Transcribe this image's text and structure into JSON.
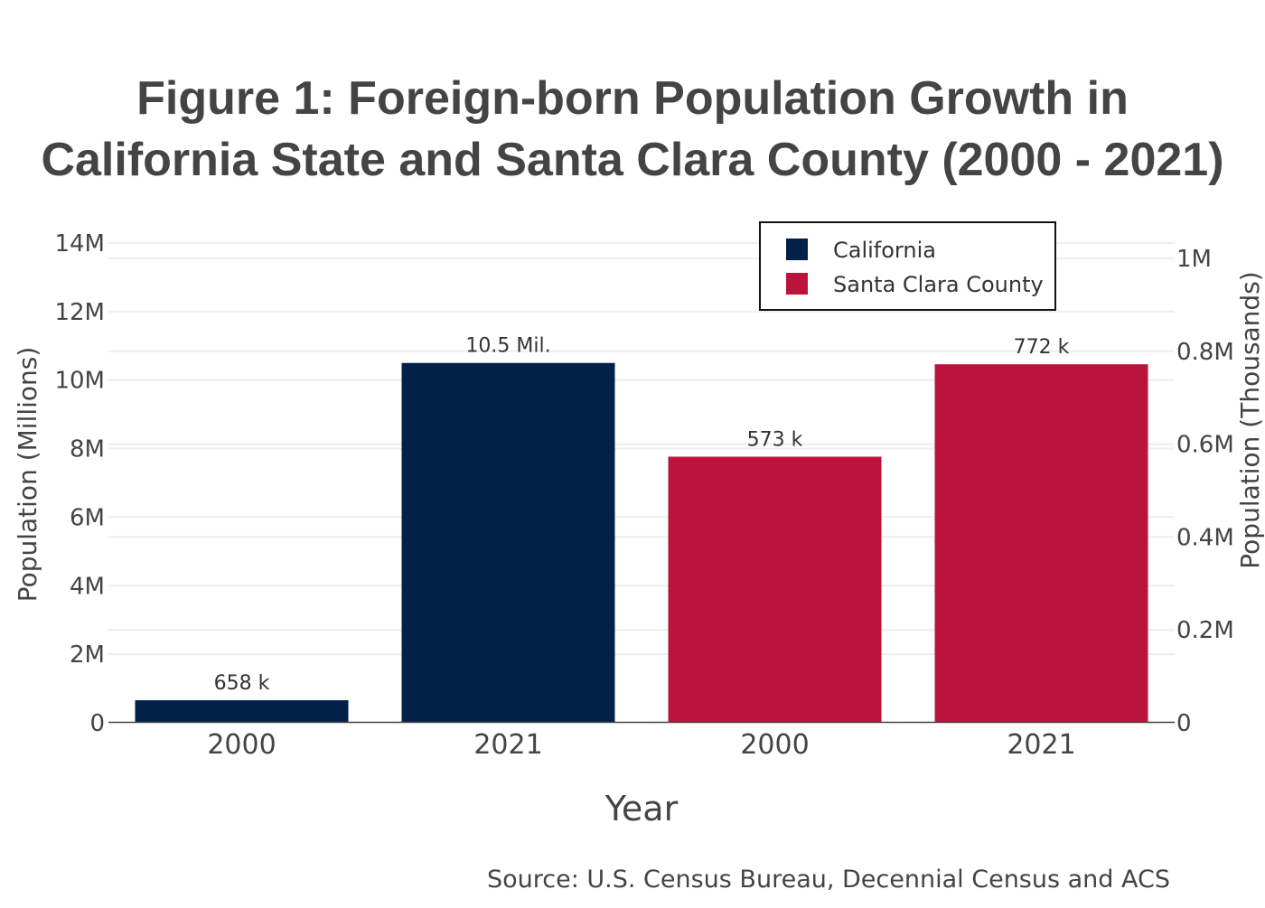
{
  "chart_data": {
    "type": "bar",
    "title_lines": [
      "Figure 1: Foreign-born Population Growth in",
      "California State and Santa Clara County (2000 - 2021)"
    ],
    "xlabel": "Year",
    "ylabel": "Population (Millions)",
    "ylabel_right": "Population (Thousands)",
    "source": "Source: U.S. Census Bureau, Decennial Census and ACS",
    "legend_position": "top-right",
    "grid": true,
    "y_left": {
      "range": [
        0,
        14500000
      ],
      "ticks": [
        0,
        2000000,
        4000000,
        6000000,
        8000000,
        10000000,
        12000000,
        14000000
      ],
      "tick_labels": [
        "0",
        "2M",
        "4M",
        "6M",
        "8M",
        "10M",
        "12M",
        "14M"
      ]
    },
    "y_right": {
      "range": [
        0,
        1070000
      ],
      "ticks": [
        0,
        200000,
        400000,
        600000,
        800000,
        1000000
      ],
      "tick_labels": [
        "0",
        "0.2M",
        "0.4M",
        "0.6M",
        "0.8M",
        "1M"
      ]
    },
    "series": [
      {
        "name": "California",
        "color": "#012147",
        "axis": "left",
        "categories": [
          "2000",
          "2021"
        ],
        "values": [
          658000,
          10500000
        ],
        "labels": [
          "658 k",
          "10.5 Mil."
        ]
      },
      {
        "name": "Santa Clara County",
        "color": "#BA143C",
        "axis": "right",
        "categories": [
          "2000",
          "2021"
        ],
        "values": [
          573000,
          772000
        ],
        "labels": [
          "573 k",
          "772 k"
        ]
      }
    ]
  }
}
